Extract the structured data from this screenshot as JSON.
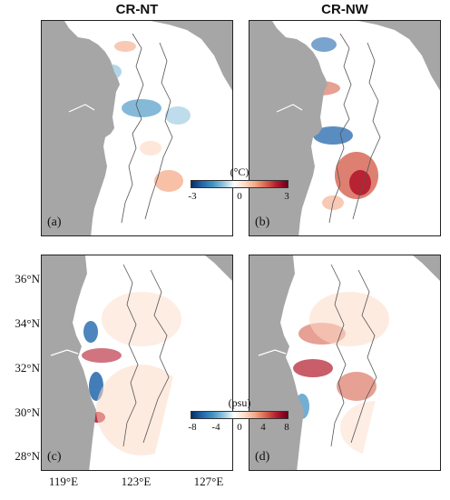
{
  "titles": {
    "left": "CR-NT",
    "right": "CR-NW"
  },
  "panels": [
    {
      "label": "(a)"
    },
    {
      "label": "(b)"
    },
    {
      "label": "(c)"
    },
    {
      "label": "(d)"
    }
  ],
  "y_ticks": [
    "36°N",
    "34°N",
    "32°N",
    "30°N",
    "28°N"
  ],
  "x_ticks": [
    "119°E",
    "123°E",
    "127°E"
  ],
  "temp_colorbar": {
    "unit": "(°C)",
    "ticks": [
      "-3",
      "0",
      "3"
    ]
  },
  "salt_colorbar": {
    "unit": "(psu)",
    "ticks": [
      "-8",
      "-4",
      "0",
      "4",
      "8"
    ]
  },
  "colors": {
    "land": "#a6a6a6",
    "positive": "#b2182b",
    "negative": "#2166ac"
  }
}
